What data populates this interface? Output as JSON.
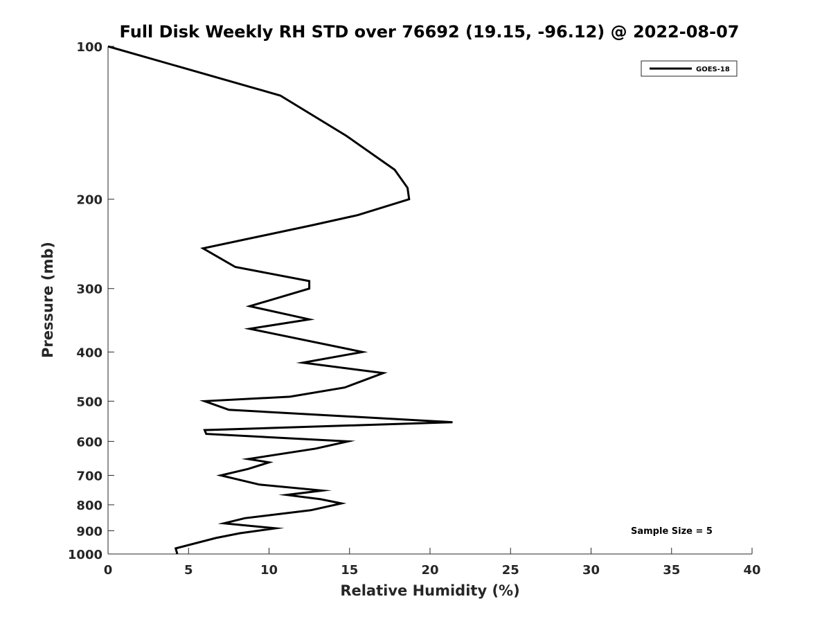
{
  "chart_data": {
    "type": "line",
    "title": "Full Disk Weekly RH STD over 76692 (19.15, -96.12) @ 2022-08-07",
    "xlabel": "Relative Humidity (%)",
    "ylabel": "Pressure (mb)",
    "xlim": [
      0,
      40
    ],
    "ylim": [
      1000,
      100
    ],
    "yscale": "log",
    "grid": false,
    "legend_position": "top-right",
    "x_ticks": [
      0,
      5,
      10,
      15,
      20,
      25,
      30,
      35,
      40
    ],
    "y_ticks": [
      100,
      200,
      300,
      400,
      500,
      600,
      700,
      800,
      900,
      1000
    ],
    "line_color": "#000000",
    "annotation": "Sample Size = 5",
    "series": [
      {
        "name": "GOES-18",
        "points": [
          [
            0.0,
            100
          ],
          [
            10.7,
            125
          ],
          [
            14.8,
            150
          ],
          [
            17.8,
            175
          ],
          [
            18.6,
            190
          ],
          [
            18.7,
            200
          ],
          [
            15.5,
            215
          ],
          [
            12.7,
            225
          ],
          [
            5.9,
            250
          ],
          [
            7.9,
            272
          ],
          [
            12.5,
            290
          ],
          [
            12.5,
            300
          ],
          [
            8.8,
            325
          ],
          [
            12.5,
            345
          ],
          [
            8.8,
            360
          ],
          [
            15.8,
            400
          ],
          [
            12.1,
            420
          ],
          [
            17.1,
            440
          ],
          [
            14.7,
            470
          ],
          [
            11.3,
            490
          ],
          [
            6.0,
            500
          ],
          [
            7.5,
            520
          ],
          [
            21.4,
            550
          ],
          [
            6.0,
            570
          ],
          [
            6.1,
            580
          ],
          [
            14.9,
            600
          ],
          [
            12.9,
            620
          ],
          [
            8.7,
            650
          ],
          [
            10.0,
            660
          ],
          [
            8.7,
            680
          ],
          [
            7.0,
            700
          ],
          [
            9.4,
            730
          ],
          [
            13.3,
            750
          ],
          [
            11.1,
            765
          ],
          [
            13.2,
            780
          ],
          [
            14.5,
            795
          ],
          [
            12.6,
            820
          ],
          [
            8.5,
            850
          ],
          [
            7.2,
            870
          ],
          [
            10.4,
            890
          ],
          [
            8.2,
            910
          ],
          [
            6.7,
            930
          ],
          [
            4.2,
            975
          ],
          [
            4.3,
            1000
          ]
        ]
      }
    ]
  }
}
